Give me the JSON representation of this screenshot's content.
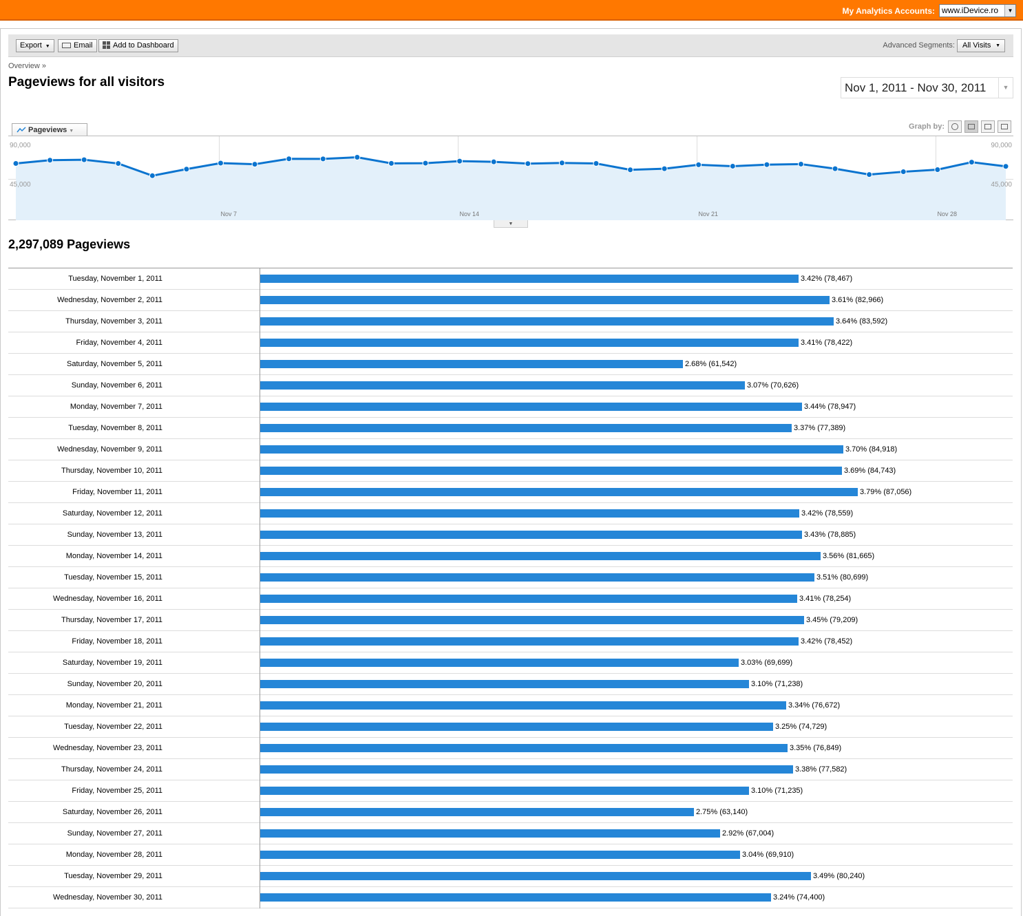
{
  "header": {
    "accounts_label": "My Analytics Accounts:",
    "account_selected": "www.iDevice.ro"
  },
  "toolbar": {
    "export_label": "Export",
    "email_label": "Email",
    "dashboard_label": "Add to Dashboard",
    "segments_label": "Advanced Segments:",
    "segments_value": "All Visits"
  },
  "breadcrumb": "Overview »",
  "page_title": "Pageviews for all visitors",
  "date_range": "Nov 1, 2011 - Nov 30, 2011",
  "graph": {
    "metric_tab": "Pageviews",
    "graph_by_label": "Graph by:",
    "y_top_label": "90,000",
    "y_mid_label": "45,000",
    "x_labels": [
      "Nov 7",
      "Nov 14",
      "Nov 21",
      "Nov 28"
    ]
  },
  "chart_data": {
    "type": "area",
    "title": "",
    "ylim": [
      0,
      117000
    ],
    "x": [
      "Nov 1",
      "Nov 2",
      "Nov 3",
      "Nov 4",
      "Nov 5",
      "Nov 6",
      "Nov 7",
      "Nov 8",
      "Nov 9",
      "Nov 10",
      "Nov 11",
      "Nov 12",
      "Nov 13",
      "Nov 14",
      "Nov 15",
      "Nov 16",
      "Nov 17",
      "Nov 18",
      "Nov 19",
      "Nov 20",
      "Nov 21",
      "Nov 22",
      "Nov 23",
      "Nov 24",
      "Nov 25",
      "Nov 26",
      "Nov 27",
      "Nov 28",
      "Nov 29",
      "Nov 30"
    ],
    "series": [
      {
        "name": "Pageviews",
        "values": [
          78467,
          82966,
          83592,
          78422,
          61542,
          70626,
          78947,
          77389,
          84918,
          84743,
          87056,
          78559,
          78885,
          81665,
          80699,
          78254,
          79209,
          78452,
          69699,
          71238,
          76672,
          74729,
          76849,
          77582,
          71235,
          63140,
          67004,
          69910,
          80240,
          74400
        ]
      }
    ]
  },
  "total_label": "2,297,089 Pageviews",
  "rows": [
    {
      "date": "Tuesday, November 1, 2011",
      "value": 78467,
      "label": "3.42% (78,467)"
    },
    {
      "date": "Wednesday, November 2, 2011",
      "value": 82966,
      "label": "3.61% (82,966)"
    },
    {
      "date": "Thursday, November 3, 2011",
      "value": 83592,
      "label": "3.64% (83,592)"
    },
    {
      "date": "Friday, November 4, 2011",
      "value": 78422,
      "label": "3.41% (78,422)"
    },
    {
      "date": "Saturday, November 5, 2011",
      "value": 61542,
      "label": "2.68% (61,542)"
    },
    {
      "date": "Sunday, November 6, 2011",
      "value": 70626,
      "label": "3.07% (70,626)"
    },
    {
      "date": "Monday, November 7, 2011",
      "value": 78947,
      "label": "3.44% (78,947)"
    },
    {
      "date": "Tuesday, November 8, 2011",
      "value": 77389,
      "label": "3.37% (77,389)"
    },
    {
      "date": "Wednesday, November 9, 2011",
      "value": 84918,
      "label": "3.70% (84,918)"
    },
    {
      "date": "Thursday, November 10, 2011",
      "value": 84743,
      "label": "3.69% (84,743)"
    },
    {
      "date": "Friday, November 11, 2011",
      "value": 87056,
      "label": "3.79% (87,056)"
    },
    {
      "date": "Saturday, November 12, 2011",
      "value": 78559,
      "label": "3.42% (78,559)"
    },
    {
      "date": "Sunday, November 13, 2011",
      "value": 78885,
      "label": "3.43% (78,885)"
    },
    {
      "date": "Monday, November 14, 2011",
      "value": 81665,
      "label": "3.56% (81,665)"
    },
    {
      "date": "Tuesday, November 15, 2011",
      "value": 80699,
      "label": "3.51% (80,699)"
    },
    {
      "date": "Wednesday, November 16, 2011",
      "value": 78254,
      "label": "3.41% (78,254)"
    },
    {
      "date": "Thursday, November 17, 2011",
      "value": 79209,
      "label": "3.45% (79,209)"
    },
    {
      "date": "Friday, November 18, 2011",
      "value": 78452,
      "label": "3.42% (78,452)"
    },
    {
      "date": "Saturday, November 19, 2011",
      "value": 69699,
      "label": "3.03% (69,699)"
    },
    {
      "date": "Sunday, November 20, 2011",
      "value": 71238,
      "label": "3.10% (71,238)"
    },
    {
      "date": "Monday, November 21, 2011",
      "value": 76672,
      "label": "3.34% (76,672)"
    },
    {
      "date": "Tuesday, November 22, 2011",
      "value": 74729,
      "label": "3.25% (74,729)"
    },
    {
      "date": "Wednesday, November 23, 2011",
      "value": 76849,
      "label": "3.35% (76,849)"
    },
    {
      "date": "Thursday, November 24, 2011",
      "value": 77582,
      "label": "3.38% (77,582)"
    },
    {
      "date": "Friday, November 25, 2011",
      "value": 71235,
      "label": "3.10% (71,235)"
    },
    {
      "date": "Saturday, November 26, 2011",
      "value": 63140,
      "label": "2.75% (63,140)"
    },
    {
      "date": "Sunday, November 27, 2011",
      "value": 67004,
      "label": "2.92% (67,004)"
    },
    {
      "date": "Monday, November 28, 2011",
      "value": 69910,
      "label": "3.04% (69,910)"
    },
    {
      "date": "Tuesday, November 29, 2011",
      "value": 80240,
      "label": "3.49% (80,240)"
    },
    {
      "date": "Wednesday, November 30, 2011",
      "value": 74400,
      "label": "3.24% (74,400)"
    }
  ],
  "colors": {
    "brand_bar": "#ff7800",
    "series": "#0b74cf",
    "bars": "#2586d7",
    "area_fill": "#e3f0fa"
  }
}
